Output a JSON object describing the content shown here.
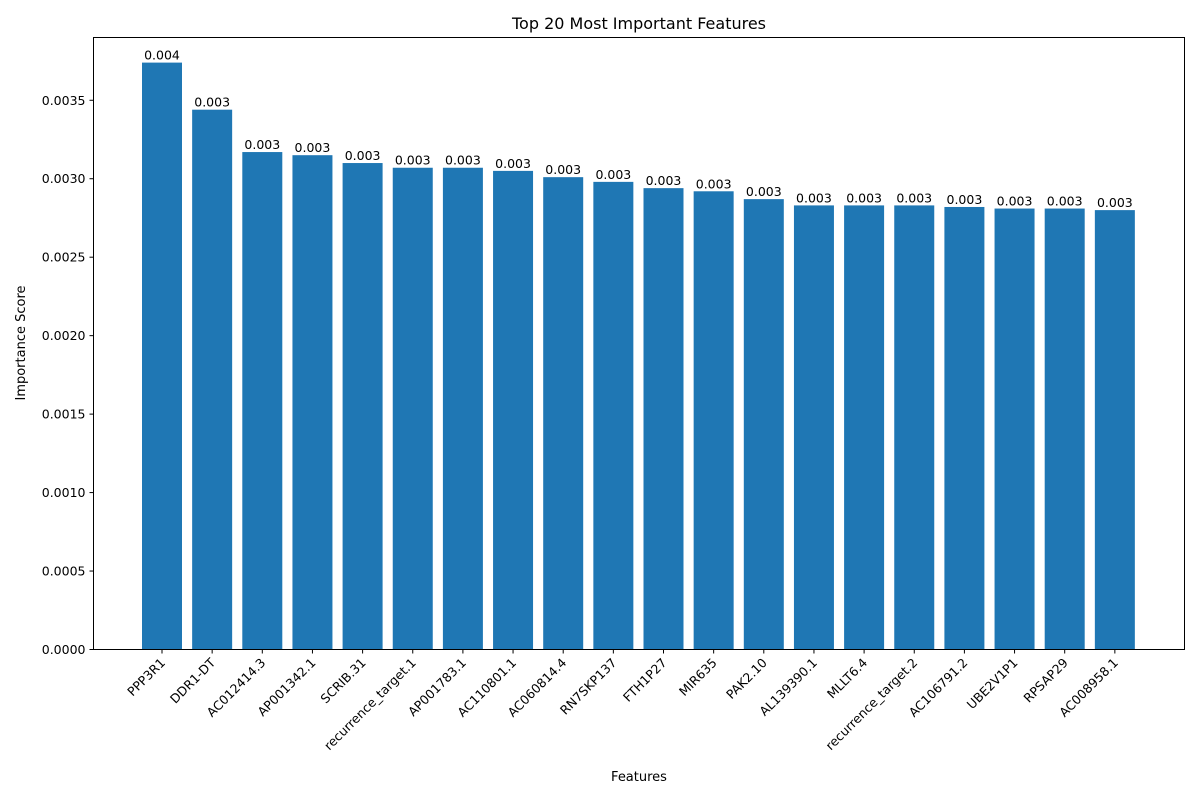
{
  "chart_data": {
    "type": "bar",
    "title": "Top 20 Most Important Features",
    "xlabel": "Features",
    "ylabel": "Importance Score",
    "ylim": [
      0,
      0.0039
    ],
    "yticks": [
      0.0,
      0.0005,
      0.001,
      0.0015,
      0.002,
      0.0025,
      0.003,
      0.0035
    ],
    "ytick_labels": [
      "0.0000",
      "0.0005",
      "0.0010",
      "0.0015",
      "0.0020",
      "0.0025",
      "0.0030",
      "0.0035"
    ],
    "grid": false,
    "color": "#1f77b4",
    "categories": [
      "PPP3R1",
      "DDR1-DT",
      "AC012414.3",
      "AP001342.1",
      "SCRIB.31",
      "recurrence_target.1",
      "AP001783.1",
      "AC110801.1",
      "AC060814.4",
      "RN7SKP137",
      "FTH1P27",
      "MIR635",
      "PAK2.10",
      "AL139390.1",
      "MLLT6.4",
      "recurrence_target.2",
      "AC106791.2",
      "UBE2V1P1",
      "RPSAP29",
      "AC008958.1"
    ],
    "values": [
      0.00374,
      0.00344,
      0.00317,
      0.00315,
      0.0031,
      0.00307,
      0.00307,
      0.00305,
      0.00301,
      0.00298,
      0.00294,
      0.00292,
      0.00287,
      0.00283,
      0.00283,
      0.00283,
      0.00282,
      0.00281,
      0.00281,
      0.0028
    ],
    "value_labels": [
      "0.004",
      "0.003",
      "0.003",
      "0.003",
      "0.003",
      "0.003",
      "0.003",
      "0.003",
      "0.003",
      "0.003",
      "0.003",
      "0.003",
      "0.003",
      "0.003",
      "0.003",
      "0.003",
      "0.003",
      "0.003",
      "0.003",
      "0.003"
    ]
  }
}
